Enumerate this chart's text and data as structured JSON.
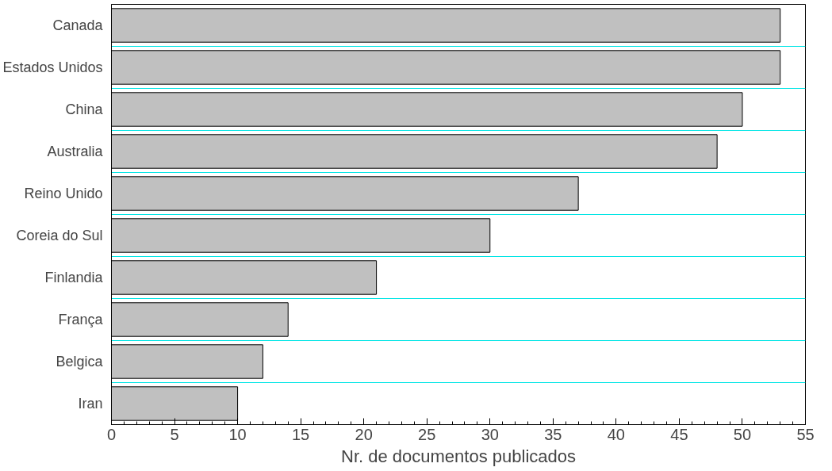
{
  "chart_data": {
    "type": "bar",
    "orientation": "horizontal",
    "xlabel": "Nr. de documentos publicados",
    "categories": [
      "Canada",
      "Estados Unidos",
      "China",
      "Australia",
      "Reino Unido",
      "Coreia do Sul",
      "Finlandia",
      "França",
      "Belgica",
      "Iran"
    ],
    "values": [
      53,
      53,
      50,
      48,
      37,
      30,
      21,
      14,
      12,
      10
    ],
    "color": "#c0c0c0",
    "xlim": [
      0,
      55
    ],
    "xticks": [
      0,
      5,
      10,
      15,
      20,
      25,
      30,
      35,
      40,
      45,
      50,
      55
    ],
    "grid": "y"
  }
}
